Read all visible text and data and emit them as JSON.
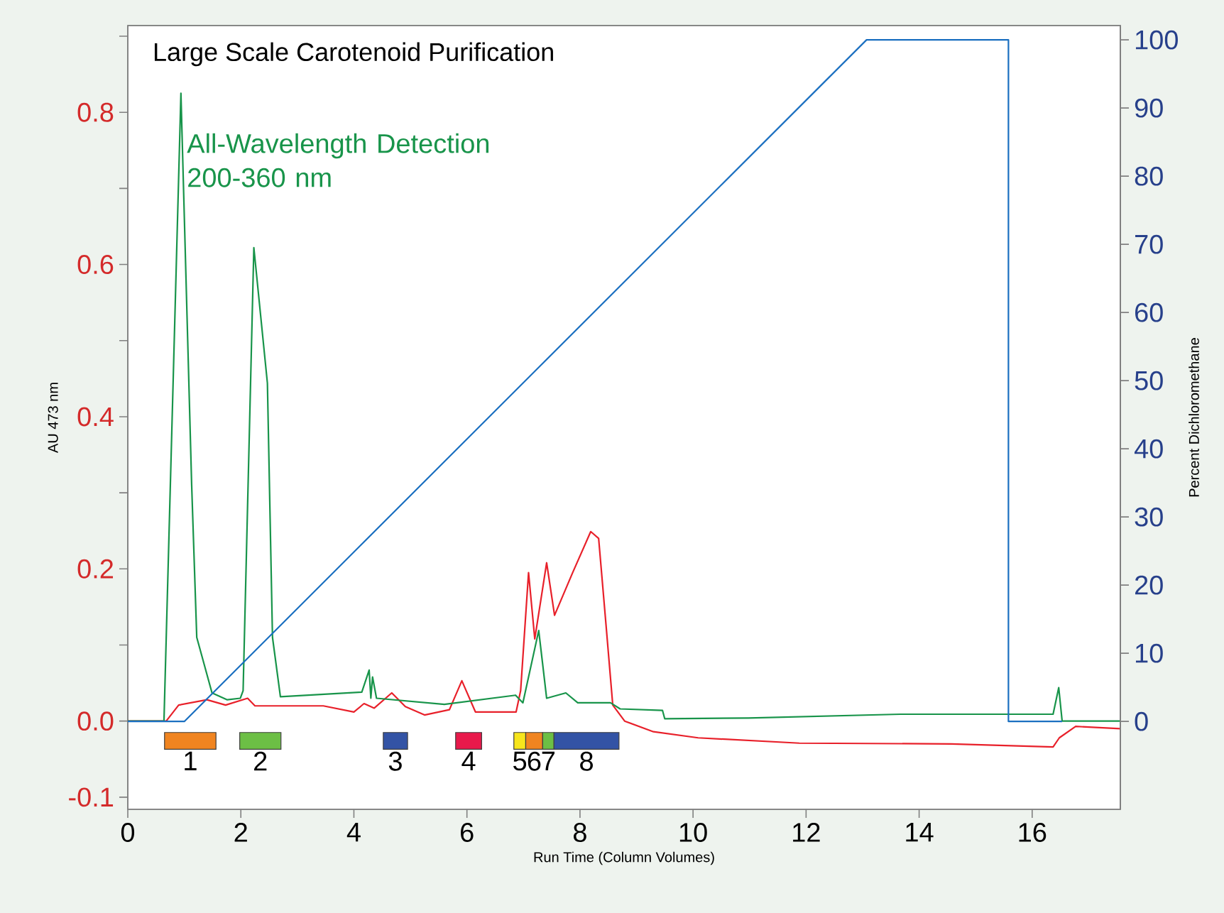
{
  "chart_data": {
    "type": "line",
    "title": "Large Scale Carotenoid Purification",
    "xlabel": "Run Time (Column Volumes)",
    "ylabel": "AU 473 nm",
    "y2label": "Percent Dichloromethane",
    "xlim": [
      0,
      17.56
    ],
    "xticks": [
      0,
      2,
      4,
      6,
      8,
      10,
      12,
      14,
      16
    ],
    "ylim": [
      -0.116,
      0.914
    ],
    "yticks": [
      -0.1,
      {
        "value": 0,
        "label": "0.0"
      },
      {
        "value": 0.1,
        "label": null
      },
      0.2,
      {
        "value": 0.3,
        "label": null
      },
      0.4,
      {
        "value": 0.5,
        "label": null
      },
      0.6,
      {
        "value": 0.7,
        "label": null
      },
      0.8,
      {
        "value": 0.9,
        "label": null
      }
    ],
    "y2lim": [
      -12.9,
      102.1
    ],
    "y2ticks": [
      0,
      10,
      20,
      30,
      40,
      50,
      60,
      70,
      80,
      90,
      100
    ],
    "series": [
      {
        "color": "#e8202a",
        "x": [
          0,
          0.68,
          0.9,
          1.4,
          1.73,
          2.12,
          2.25,
          3.46,
          4.0,
          4.18,
          4.36,
          4.67,
          4.91,
          5.25,
          5.69,
          5.91,
          6.15,
          6.87,
          6.95,
          7.09,
          7.2,
          7.41,
          7.55,
          7.87,
          8.19,
          8.33,
          8.46,
          8.58,
          8.79,
          9.3,
          10.09,
          11.88,
          14.57,
          16.37,
          16.48,
          16.77,
          17.56
        ],
        "values": [
          0,
          0,
          0.021,
          0.028,
          0.021,
          0.03,
          0.02,
          0.02,
          0.012,
          0.023,
          0.017,
          0.037,
          0.019,
          0.008,
          0.015,
          0.053,
          0.012,
          0.012,
          0.04,
          0.195,
          0.108,
          0.208,
          0.139,
          0.195,
          0.249,
          0.24,
          0.127,
          0.021,
          0,
          -0.014,
          -0.022,
          -0.029,
          -0.03,
          -0.034,
          -0.022,
          -0.007,
          -0.01
        ]
      },
      {
        "name": "All-Wavelength Detection 200-360 nm",
        "color": "#18944a",
        "x": [
          0,
          0.64,
          0.94,
          1.13,
          1.22,
          1.49,
          1.76,
          1.99,
          2.04,
          2.23,
          2.47,
          2.56,
          2.7,
          4.14,
          4.27,
          4.3,
          4.33,
          4.4,
          5.6,
          6.86,
          6.99,
          7.27,
          7.41,
          7.75,
          7.96,
          8.54,
          8.71,
          9.46,
          9.5,
          10.98,
          13.67,
          16.37,
          16.47,
          16.53,
          17.56
        ],
        "values": [
          0,
          0,
          0.825,
          0.31,
          0.11,
          0.037,
          0.028,
          0.03,
          0.04,
          0.622,
          0.444,
          0.11,
          0.032,
          0.038,
          0.067,
          0.03,
          0.058,
          0.03,
          0.022,
          0.034,
          0.024,
          0.119,
          0.03,
          0.037,
          0.024,
          0.024,
          0.016,
          0.014,
          0.003,
          0.004,
          0.009,
          0.009,
          0.044,
          0,
          0
        ]
      },
      {
        "axis": "y2",
        "color": "#1a6fc0",
        "x": [
          0,
          1.0,
          13.07,
          15.58,
          15.58,
          16.53
        ],
        "values": [
          0,
          0,
          100,
          100,
          0,
          0
        ]
      }
    ],
    "annotations": [
      "1",
      "2",
      "3",
      "4",
      "5",
      "6",
      "7",
      "8"
    ]
  }
}
